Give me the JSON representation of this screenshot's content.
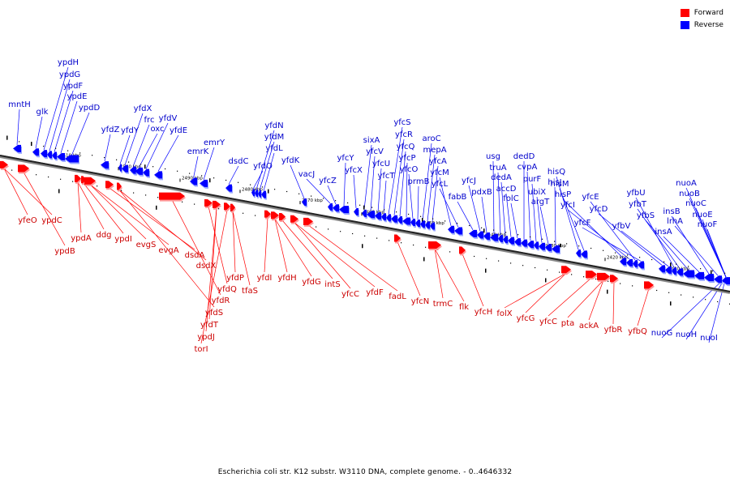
{
  "legend": {
    "forward_label": "Forward",
    "reverse_label": "Reverse",
    "forward_color": "#ff0000",
    "reverse_color": "#0000ff"
  },
  "caption": "Escherichia coli str. K12 substr. W3110 DNA, complete genome. - 0..4646332",
  "scale_ticks": [
    "2510 kbp",
    "2500 kbp",
    "2490 kbp",
    "2480 kbp",
    "2470 kbp",
    "2460 kbp",
    "2450 kbp",
    "2440 kbp",
    "2430 kbp",
    "2420 kbp",
    "2410 kbp"
  ],
  "reverse_genes": [
    "mntH",
    "glk",
    "ypdH",
    "ypdG",
    "ypdF",
    "ypdE",
    "ypdD",
    "yfdZ",
    "yfdY",
    "yfdX",
    "frc",
    "oxc",
    "yfdV",
    "yfdE",
    "emrK",
    "emrY",
    "dsdC",
    "yfdO",
    "yfdN",
    "yfdM",
    "yfdL",
    "yfdK",
    "vacJ",
    "yfcZ",
    "yfcY",
    "yfcX",
    "sixA",
    "yfcV",
    "yfcU",
    "yfcT",
    "yfcS",
    "yfcR",
    "yfcQ",
    "yfcP",
    "yfcO",
    "prmB",
    "aroC",
    "mepA",
    "yfcA",
    "yfcM",
    "yfcL",
    "fabB",
    "yfcJ",
    "pdxB",
    "usg",
    "truA",
    "dedA",
    "accD",
    "folC",
    "dedD",
    "cvpA",
    "purF",
    "ubiX",
    "argT",
    "hisJ",
    "hisQ",
    "hisM",
    "hisP",
    "yfcI",
    "yfcE",
    "yfcF",
    "yfcD",
    "yfbV",
    "yfbU",
    "yfbT",
    "yfbS",
    "insA",
    "insB",
    "lrhA",
    "nuoA",
    "nuoB",
    "nuoC",
    "nuoE",
    "nuoF",
    "nuoG",
    "nuoH",
    "nuoI"
  ],
  "forward_genes": [
    "yfeO",
    "ypdC",
    "ypdB",
    "ypdA",
    "ddg",
    "ypdI",
    "evgS",
    "evgA",
    "dsdA",
    "dsdX",
    "yfdS",
    "yfdR",
    "yfdQ",
    "yfdT",
    "ypdJ",
    "torI",
    "yfdP",
    "tfaS",
    "yfdI",
    "yfdH",
    "yfdG",
    "intS",
    "yfcC",
    "yfdF",
    "fadL",
    "yfcN",
    "trmC",
    "flk",
    "yfcH",
    "folX",
    "yfcG",
    "yfcC",
    "pta",
    "ackA",
    "yfbR",
    "yfbQ"
  ]
}
